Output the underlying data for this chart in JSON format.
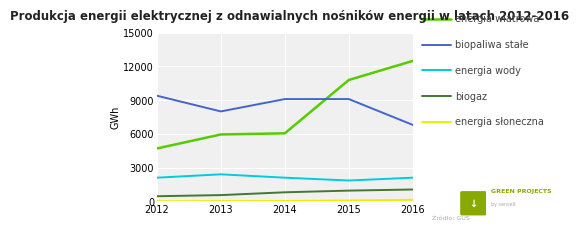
{
  "title": "Produkcja energii elektrycznej z odnawialnych nośników energii w latach 2012-2016",
  "ylabel": "GWh",
  "years": [
    2012,
    2013,
    2014,
    2015,
    2016
  ],
  "series": [
    {
      "name": "energia wiatrowa",
      "values": [
        4700,
        5950,
        6050,
        10800,
        12500
      ],
      "color": "#55cc00",
      "linewidth": 1.8
    },
    {
      "name": "biopaliwa stałe",
      "values": [
        9400,
        8000,
        9100,
        9100,
        6800
      ],
      "color": "#4466cc",
      "linewidth": 1.4
    },
    {
      "name": "energia wody",
      "values": [
        2100,
        2400,
        2100,
        1850,
        2100
      ],
      "color": "#00ccdd",
      "linewidth": 1.4
    },
    {
      "name": "biogaz",
      "values": [
        450,
        550,
        800,
        950,
        1050
      ],
      "color": "#447733",
      "linewidth": 1.4
    },
    {
      "name": "energia słoneczna",
      "values": [
        5,
        15,
        25,
        70,
        130
      ],
      "color": "#eeee00",
      "linewidth": 1.4
    }
  ],
  "ylim": [
    0,
    15000
  ],
  "yticks": [
    0,
    3000,
    6000,
    9000,
    12000,
    15000
  ],
  "xticks": [
    2012,
    2013,
    2014,
    2015,
    2016
  ],
  "background_color": "#ffffff",
  "plot_bg_color": "#f0f0f0",
  "grid_color": "#ffffff",
  "title_fontsize": 8.5,
  "axis_fontsize": 7,
  "legend_fontsize": 7,
  "gp_logo_color": "#88aa00",
  "source_text": "Źródło: GUS"
}
